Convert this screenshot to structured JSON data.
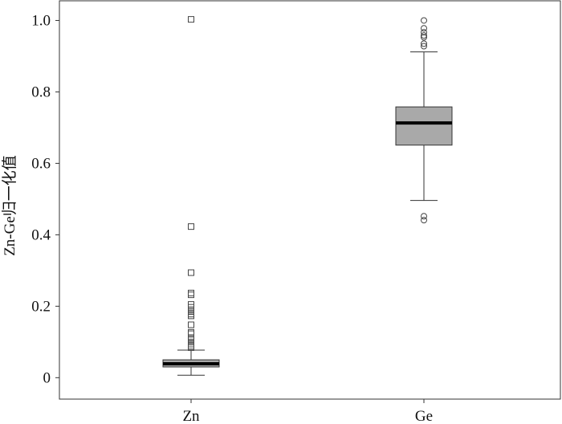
{
  "chart_data": {
    "type": "boxplot",
    "ylabel": "Zn-Ge归一化值",
    "ylim": [
      -0.06,
      1.055
    ],
    "yticks": [
      {
        "value": 0,
        "label": "0"
      },
      {
        "value": 0.2,
        "label": "0.2"
      },
      {
        "value": 0.4,
        "label": "0.4"
      },
      {
        "value": 0.6,
        "label": "0.6"
      },
      {
        "value": 0.8,
        "label": "0.8"
      },
      {
        "value": 1.0,
        "label": "1.0"
      }
    ],
    "categories": [
      "Zn",
      "Ge"
    ],
    "box_fill": "#a9a9a9",
    "series": [
      {
        "category": "Zn",
        "outlier_marker": "square",
        "whisker_low": 0.007,
        "q1": 0.03,
        "median": 0.039,
        "q3": 0.05,
        "whisker_high": 0.077,
        "outliers": [
          1.003,
          0.423,
          0.294,
          0.237,
          0.232,
          0.205,
          0.197,
          0.19,
          0.185,
          0.178,
          0.173,
          0.148,
          0.127,
          0.123,
          0.112,
          0.106,
          0.1,
          0.094,
          0.088,
          0.084
        ]
      },
      {
        "category": "Ge",
        "outlier_marker": "circle",
        "whisker_low": 0.496,
        "q1": 0.651,
        "median": 0.713,
        "q3": 0.758,
        "whisker_high": 0.912,
        "outliers": [
          1.0,
          0.978,
          0.967,
          0.958,
          0.953,
          0.935,
          0.928,
          0.452,
          0.441
        ]
      }
    ]
  }
}
